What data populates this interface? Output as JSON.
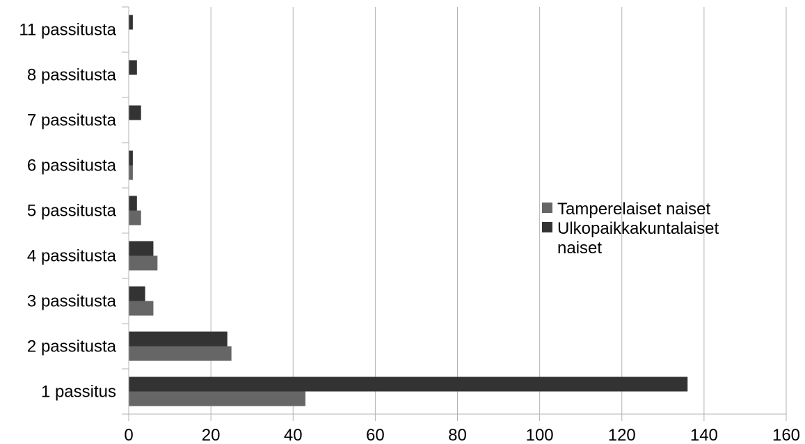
{
  "chart_data": {
    "type": "bar",
    "orientation": "horizontal",
    "categories": [
      "1 passitus",
      "2 passitusta",
      "3 passitusta",
      "4 passitusta",
      "5 passitusta",
      "6 passitusta",
      "7 passitusta",
      "8 passitusta",
      "11 passitusta"
    ],
    "series": [
      {
        "name": "Tamperelaiset naiset",
        "color": "#666666",
        "values": [
          43,
          25,
          6,
          7,
          3,
          1,
          0,
          0,
          0
        ]
      },
      {
        "name": "Ulkopaikkakuntalaiset naiset",
        "color": "#333333",
        "values": [
          136,
          24,
          4,
          6,
          2,
          1,
          3,
          2,
          1
        ]
      }
    ],
    "xlim": [
      0,
      160
    ],
    "xticks": [
      0,
      20,
      40,
      60,
      80,
      100,
      120,
      140,
      160
    ],
    "grid": "vertical",
    "legend_position": "right",
    "title": "",
    "xlabel": "",
    "ylabel": ""
  }
}
